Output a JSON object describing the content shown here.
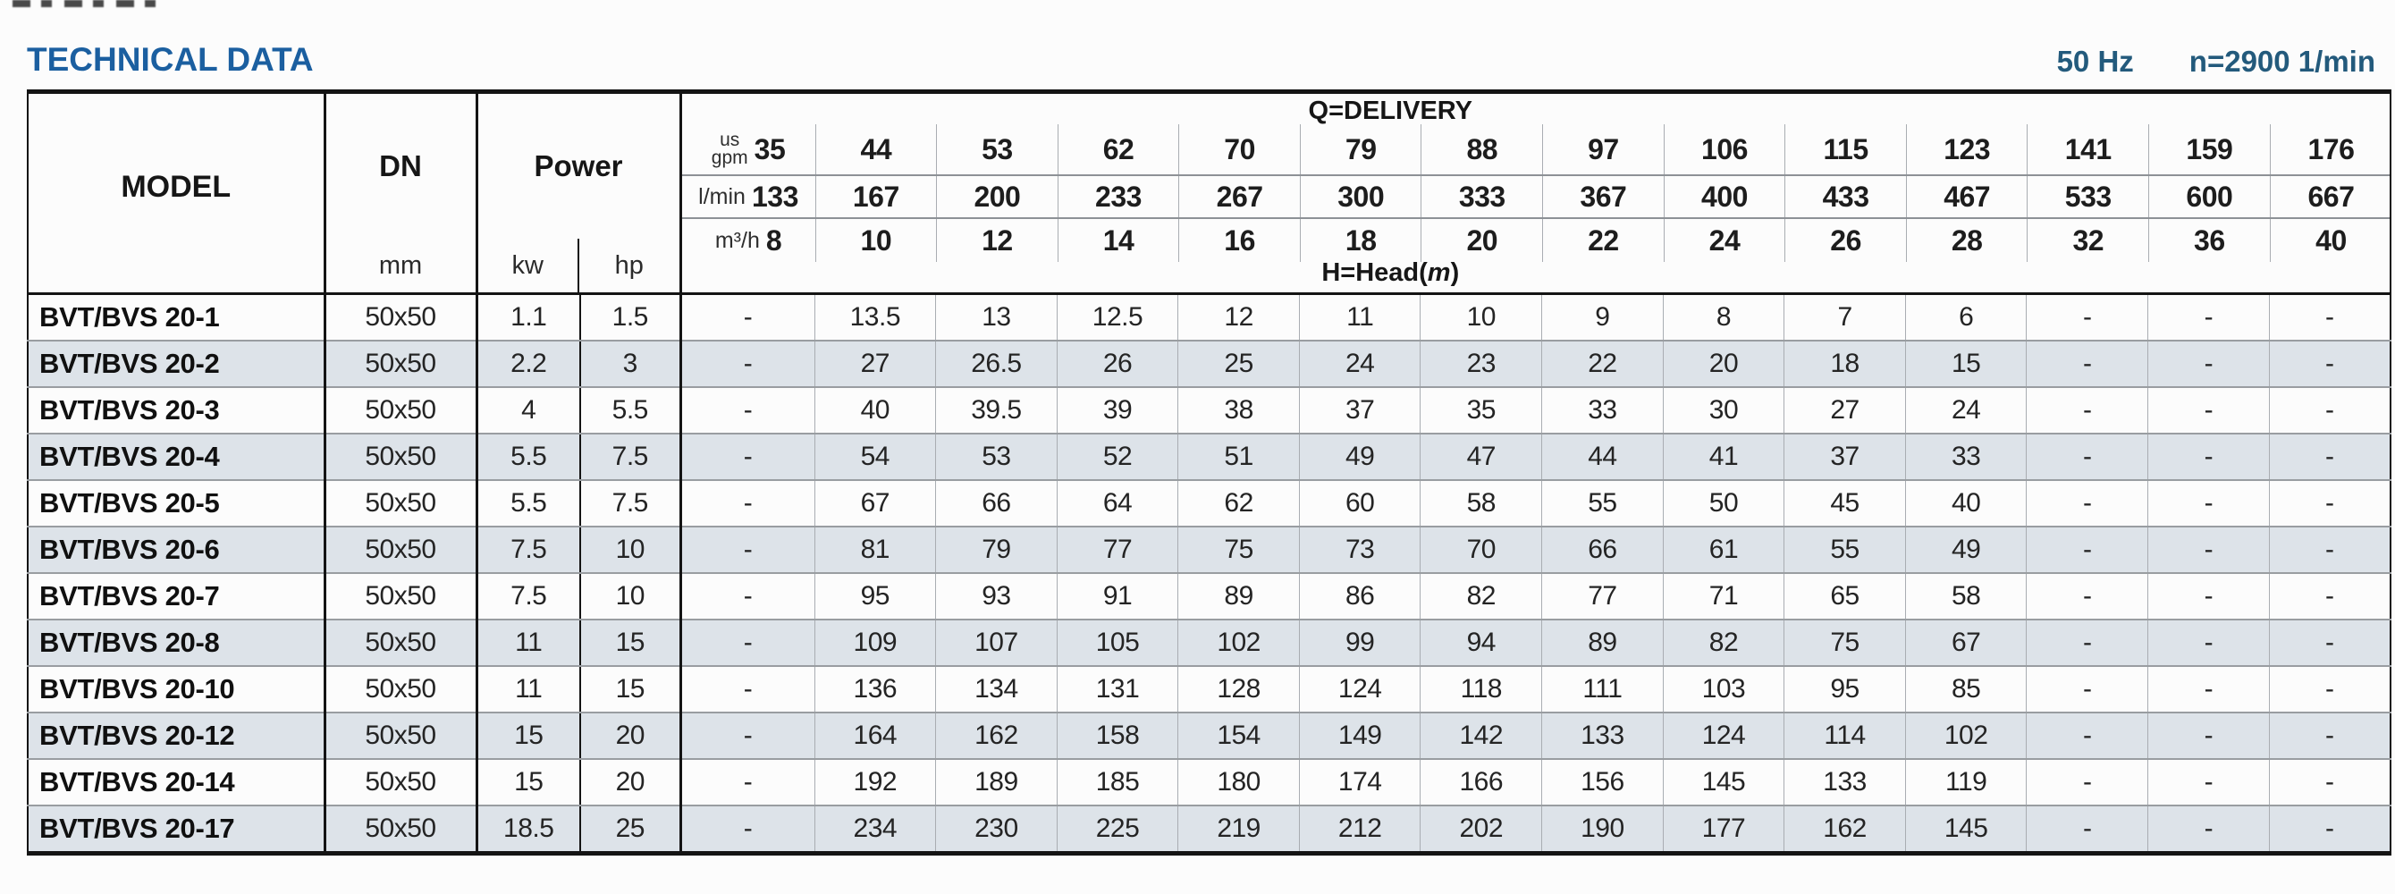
{
  "header": {
    "title": "TECHNICAL DATA",
    "frequency": "50 Hz",
    "speed": "n=2900 1/min"
  },
  "colors": {
    "title_blue": "#1b5fa0",
    "spec_blue": "#235a7c",
    "row_shade": "#dde3e9"
  },
  "table": {
    "model_label": "MODEL",
    "dn_label": "DN",
    "dn_unit": "mm",
    "power_label": "Power",
    "power_units": [
      "kw",
      "hp"
    ],
    "delivery_label": "Q=DELIVERY",
    "head_prefix": "H=Head(",
    "head_m": "m",
    "head_suffix": ")",
    "units": {
      "gpm_line1": "us",
      "gpm_line2": "gpm",
      "lmin": "l/min",
      "m3h": "m³/h"
    },
    "gpm": [
      "35",
      "44",
      "53",
      "62",
      "70",
      "79",
      "88",
      "97",
      "106",
      "115",
      "123",
      "141",
      "159",
      "176"
    ],
    "lmin": [
      "133",
      "167",
      "200",
      "233",
      "267",
      "300",
      "333",
      "367",
      "400",
      "433",
      "467",
      "533",
      "600",
      "667"
    ],
    "m3h": [
      "8",
      "10",
      "12",
      "14",
      "16",
      "18",
      "20",
      "22",
      "24",
      "26",
      "28",
      "32",
      "36",
      "40"
    ],
    "rows": [
      {
        "model": "BVT/BVS 20-1",
        "dn": "50x50",
        "kw": "1.1",
        "hp": "1.5",
        "head": [
          "-",
          "13.5",
          "13",
          "12.5",
          "12",
          "11",
          "10",
          "9",
          "8",
          "7",
          "6",
          "-",
          "-",
          "-"
        ]
      },
      {
        "model": "BVT/BVS 20-2",
        "dn": "50x50",
        "kw": "2.2",
        "hp": "3",
        "head": [
          "-",
          "27",
          "26.5",
          "26",
          "25",
          "24",
          "23",
          "22",
          "20",
          "18",
          "15",
          "-",
          "-",
          "-"
        ]
      },
      {
        "model": "BVT/BVS 20-3",
        "dn": "50x50",
        "kw": "4",
        "hp": "5.5",
        "head": [
          "-",
          "40",
          "39.5",
          "39",
          "38",
          "37",
          "35",
          "33",
          "30",
          "27",
          "24",
          "-",
          "-",
          "-"
        ]
      },
      {
        "model": "BVT/BVS 20-4",
        "dn": "50x50",
        "kw": "5.5",
        "hp": "7.5",
        "head": [
          "-",
          "54",
          "53",
          "52",
          "51",
          "49",
          "47",
          "44",
          "41",
          "37",
          "33",
          "-",
          "-",
          "-"
        ]
      },
      {
        "model": "BVT/BVS 20-5",
        "dn": "50x50",
        "kw": "5.5",
        "hp": "7.5",
        "head": [
          "-",
          "67",
          "66",
          "64",
          "62",
          "60",
          "58",
          "55",
          "50",
          "45",
          "40",
          "-",
          "-",
          "-"
        ]
      },
      {
        "model": "BVT/BVS 20-6",
        "dn": "50x50",
        "kw": "7.5",
        "hp": "10",
        "head": [
          "-",
          "81",
          "79",
          "77",
          "75",
          "73",
          "70",
          "66",
          "61",
          "55",
          "49",
          "-",
          "-",
          "-"
        ]
      },
      {
        "model": "BVT/BVS 20-7",
        "dn": "50x50",
        "kw": "7.5",
        "hp": "10",
        "head": [
          "-",
          "95",
          "93",
          "91",
          "89",
          "86",
          "82",
          "77",
          "71",
          "65",
          "58",
          "-",
          "-",
          "-"
        ]
      },
      {
        "model": "BVT/BVS 20-8",
        "dn": "50x50",
        "kw": "11",
        "hp": "15",
        "head": [
          "-",
          "109",
          "107",
          "105",
          "102",
          "99",
          "94",
          "89",
          "82",
          "75",
          "67",
          "-",
          "-",
          "-"
        ]
      },
      {
        "model": "BVT/BVS 20-10",
        "dn": "50x50",
        "kw": "11",
        "hp": "15",
        "head": [
          "-",
          "136",
          "134",
          "131",
          "128",
          "124",
          "118",
          "111",
          "103",
          "95",
          "85",
          "-",
          "-",
          "-"
        ]
      },
      {
        "model": "BVT/BVS 20-12",
        "dn": "50x50",
        "kw": "15",
        "hp": "20",
        "head": [
          "-",
          "164",
          "162",
          "158",
          "154",
          "149",
          "142",
          "133",
          "124",
          "114",
          "102",
          "-",
          "-",
          "-"
        ]
      },
      {
        "model": "BVT/BVS 20-14",
        "dn": "50x50",
        "kw": "15",
        "hp": "20",
        "head": [
          "-",
          "192",
          "189",
          "185",
          "180",
          "174",
          "166",
          "156",
          "145",
          "133",
          "119",
          "-",
          "-",
          "-"
        ]
      },
      {
        "model": "BVT/BVS 20-17",
        "dn": "50x50",
        "kw": "18.5",
        "hp": "25",
        "head": [
          "-",
          "234",
          "230",
          "225",
          "219",
          "212",
          "202",
          "190",
          "177",
          "162",
          "145",
          "-",
          "-",
          "-"
        ]
      }
    ]
  }
}
